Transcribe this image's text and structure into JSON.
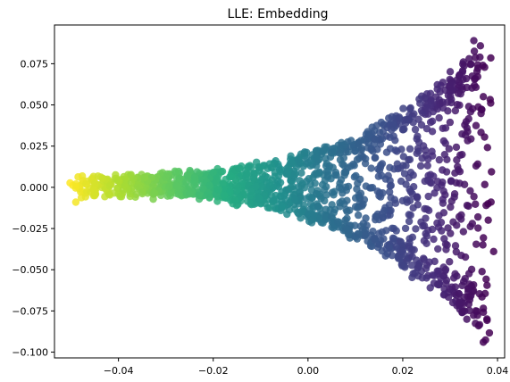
{
  "chart_data": {
    "type": "scatter",
    "title": "LLE: Embedding",
    "xlabel": "",
    "ylabel": "",
    "xlim": [
      -0.0535,
      0.0415
    ],
    "ylim": [
      -0.1035,
      0.0985
    ],
    "xticks": [
      -0.04,
      -0.02,
      0.0,
      0.02,
      0.04
    ],
    "xtick_labels": [
      "−0.04",
      "−0.02",
      "0.00",
      "0.02",
      "0.04"
    ],
    "yticks": [
      -0.1,
      -0.075,
      -0.05,
      -0.025,
      0.0,
      0.025,
      0.05,
      0.075
    ],
    "ytick_labels": [
      "−0.100",
      "−0.075",
      "−0.050",
      "−0.025",
      "0.000",
      "0.025",
      "0.050",
      "0.075"
    ],
    "colormap": "viridis",
    "color_by": "x (high x = dark purple, low x = yellow)",
    "marker_alpha": 0.85,
    "grid": false,
    "legend": "none",
    "point_count": 1500,
    "points_sample": [
      {
        "x": -0.049,
        "y": -0.009
      },
      {
        "x": -0.049,
        "y": 0.002
      },
      {
        "x": -0.045,
        "y": -0.005
      },
      {
        "x": -0.04,
        "y": 0.004
      },
      {
        "x": -0.035,
        "y": -0.003
      },
      {
        "x": -0.03,
        "y": 0.006
      },
      {
        "x": -0.025,
        "y": -0.004
      },
      {
        "x": -0.02,
        "y": 0.009
      },
      {
        "x": -0.015,
        "y": -0.002
      },
      {
        "x": -0.01,
        "y": 0.012
      },
      {
        "x": -0.005,
        "y": -0.005
      },
      {
        "x": 0.0,
        "y": 0.015
      },
      {
        "x": 0.005,
        "y": -0.018
      },
      {
        "x": 0.01,
        "y": 0.022
      },
      {
        "x": 0.015,
        "y": -0.028
      },
      {
        "x": 0.02,
        "y": 0.035
      },
      {
        "x": 0.022,
        "y": -0.042
      },
      {
        "x": 0.025,
        "y": 0.048
      },
      {
        "x": 0.028,
        "y": -0.055
      },
      {
        "x": 0.03,
        "y": 0.062
      },
      {
        "x": 0.032,
        "y": -0.07
      },
      {
        "x": 0.034,
        "y": 0.078
      },
      {
        "x": 0.035,
        "y": 0.089
      },
      {
        "x": 0.036,
        "y": -0.084
      },
      {
        "x": 0.037,
        "y": -0.094
      },
      {
        "x": 0.037,
        "y": 0.055
      },
      {
        "x": 0.038,
        "y": -0.01
      }
    ]
  }
}
